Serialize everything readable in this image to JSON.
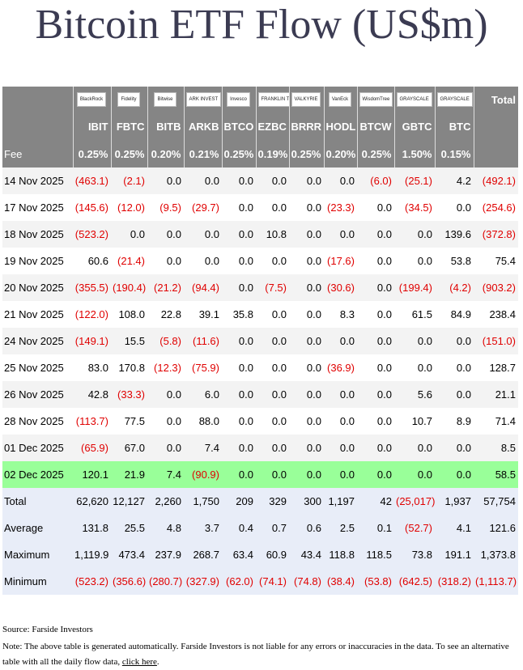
{
  "header": {
    "title": "Bitcoin ETF Flow (US$m)"
  },
  "table": {
    "logos": [
      "BlackRock",
      "Fidelity",
      "Bitwise",
      "ARK INVEST",
      "Invesco",
      "FRANKLIN TEMPLETON",
      "VALKYRIE",
      "VanEck",
      "WisdomTree",
      "GRAYSCALE",
      "GRAYSCALE"
    ],
    "total_label": "Total",
    "tickers": [
      "IBIT",
      "FBTC",
      "BITB",
      "ARKB",
      "BTCO",
      "EZBC",
      "BRRR",
      "HODL",
      "BTCW",
      "GBTC",
      "BTC"
    ],
    "fee_label": "Fee",
    "fees": [
      "0.25%",
      "0.25%",
      "0.20%",
      "0.21%",
      "0.25%",
      "0.19%",
      "0.25%",
      "0.20%",
      "0.25%",
      "1.50%",
      "0.15%"
    ],
    "rows": [
      [
        "14 Nov 2025",
        "(463.1)",
        "(2.1)",
        "0.0",
        "0.0",
        "0.0",
        "0.0",
        "0.0",
        "0.0",
        "(6.0)",
        "(25.1)",
        "4.2",
        "(492.1)"
      ],
      [
        "17 Nov 2025",
        "(145.6)",
        "(12.0)",
        "(9.5)",
        "(29.7)",
        "0.0",
        "0.0",
        "0.0",
        "(23.3)",
        "0.0",
        "(34.5)",
        "0.0",
        "(254.6)"
      ],
      [
        "18 Nov 2025",
        "(523.2)",
        "0.0",
        "0.0",
        "0.0",
        "0.0",
        "10.8",
        "0.0",
        "0.0",
        "0.0",
        "0.0",
        "139.6",
        "(372.8)"
      ],
      [
        "19 Nov 2025",
        "60.6",
        "(21.4)",
        "0.0",
        "0.0",
        "0.0",
        "0.0",
        "0.0",
        "(17.6)",
        "0.0",
        "0.0",
        "53.8",
        "75.4"
      ],
      [
        "20 Nov 2025",
        "(355.5)",
        "(190.4)",
        "(21.2)",
        "(94.4)",
        "0.0",
        "(7.5)",
        "0.0",
        "(30.6)",
        "0.0",
        "(199.4)",
        "(4.2)",
        "(903.2)"
      ],
      [
        "21 Nov 2025",
        "(122.0)",
        "108.0",
        "22.8",
        "39.1",
        "35.8",
        "0.0",
        "0.0",
        "8.3",
        "0.0",
        "61.5",
        "84.9",
        "238.4"
      ],
      [
        "24 Nov 2025",
        "(149.1)",
        "15.5",
        "(5.8)",
        "(11.6)",
        "0.0",
        "0.0",
        "0.0",
        "0.0",
        "0.0",
        "0.0",
        "0.0",
        "(151.0)"
      ],
      [
        "25 Nov 2025",
        "83.0",
        "170.8",
        "(12.3)",
        "(75.9)",
        "0.0",
        "0.0",
        "0.0",
        "(36.9)",
        "0.0",
        "0.0",
        "0.0",
        "128.7"
      ],
      [
        "26 Nov 2025",
        "42.8",
        "(33.3)",
        "0.0",
        "6.0",
        "0.0",
        "0.0",
        "0.0",
        "0.0",
        "0.0",
        "5.6",
        "0.0",
        "21.1"
      ],
      [
        "28 Nov 2025",
        "(113.7)",
        "77.5",
        "0.0",
        "88.0",
        "0.0",
        "0.0",
        "0.0",
        "0.0",
        "0.0",
        "10.7",
        "8.9",
        "71.4"
      ],
      [
        "01 Dec 2025",
        "(65.9)",
        "67.0",
        "0.0",
        "7.4",
        "0.0",
        "0.0",
        "0.0",
        "0.0",
        "0.0",
        "0.0",
        "0.0",
        "8.5"
      ],
      [
        "02 Dec 2025",
        "120.1",
        "21.9",
        "7.4",
        "(90.9)",
        "0.0",
        "0.0",
        "0.0",
        "0.0",
        "0.0",
        "0.0",
        "0.0",
        "58.5"
      ]
    ],
    "summary": [
      [
        "Total",
        "62,620",
        "12,127",
        "2,260",
        "1,750",
        "209",
        "329",
        "300",
        "1,197",
        "42",
        "(25,017)",
        "1,937",
        "57,754"
      ],
      [
        "Average",
        "131.8",
        "25.5",
        "4.8",
        "3.7",
        "0.4",
        "0.7",
        "0.6",
        "2.5",
        "0.1",
        "(52.7)",
        "4.1",
        "121.6"
      ],
      [
        "Maximum",
        "1,119.9",
        "473.4",
        "237.9",
        "268.7",
        "63.4",
        "60.9",
        "43.4",
        "118.8",
        "118.5",
        "73.8",
        "191.1",
        "1,373.8"
      ],
      [
        "Minimum",
        "(523.2)",
        "(356.6)",
        "(280.7)",
        "(327.9)",
        "(62.0)",
        "(74.1)",
        "(74.8)",
        "(38.4)",
        "(53.8)",
        "(642.5)",
        "(318.2)",
        "(1,113.7)"
      ]
    ]
  },
  "footer": {
    "source": "Source: Farside Investors",
    "note": "Note: The above table is generated automatically. Farside Investors is not liable for any errors or inaccuracies in the data. To see an alternative table with all the daily flow data, ",
    "link": "click here",
    "note_end": "."
  }
}
